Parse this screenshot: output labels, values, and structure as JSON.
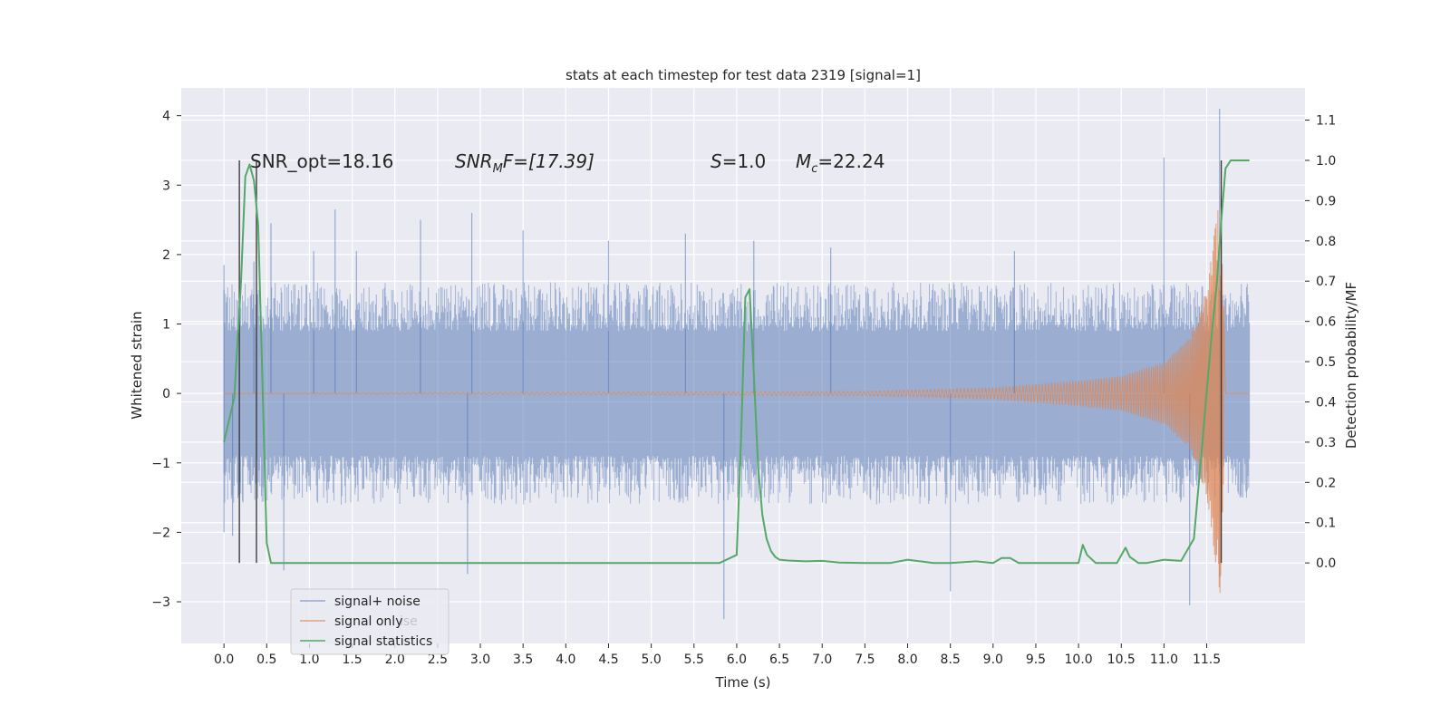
{
  "chart_data": {
    "type": "line",
    "title": "stats at each timestep for test data 2319 [signal=1]",
    "xlabel": "Time (s)",
    "ylabel": "Whitened strain",
    "y2label": "Detection probability/MF",
    "xlim": [
      -0.5,
      12.65
    ],
    "ylim": [
      -3.6,
      4.4
    ],
    "y2lim": [
      -0.2,
      1.18
    ],
    "x_ticks": [
      "0.0",
      "0.5",
      "1.0",
      "1.5",
      "2.0",
      "2.5",
      "3.0",
      "3.5",
      "4.0",
      "4.5",
      "5.0",
      "5.5",
      "6.0",
      "6.5",
      "7.0",
      "7.5",
      "8.0",
      "8.5",
      "9.0",
      "9.5",
      "10.0",
      "10.5",
      "11.0",
      "11.5"
    ],
    "y_ticks": [
      "4",
      "3",
      "2",
      "1",
      "0",
      "−1",
      "−2",
      "−3"
    ],
    "y2_ticks": [
      "1.1",
      "1.0",
      "0.9",
      "0.8",
      "0.7",
      "0.6",
      "0.5",
      "0.4",
      "0.3",
      "0.2",
      "0.1",
      "0.0"
    ],
    "grid": true,
    "legend_position": "lower-left",
    "annotations": [
      "SNR_opt=18.16",
      "SNR",
      "M",
      "F=[17.39]",
      "S",
      "=1.0",
      "M",
      "c",
      "=22.24"
    ],
    "series": [
      {
        "name": "signal+ noise",
        "axis": "left",
        "color": "#4c72b0",
        "description_x_range": [
          0.0,
          12.0
        ],
        "typical_band": [
          -1.6,
          1.6
        ],
        "spikes": [
          {
            "x": 0.0,
            "y": 1.85
          },
          {
            "x": 0.0,
            "y": -2.0
          },
          {
            "x": 0.1,
            "y": -2.05
          },
          {
            "x": 0.35,
            "y": 1.9
          },
          {
            "x": 0.55,
            "y": 2.45
          },
          {
            "x": 0.7,
            "y": -2.55
          },
          {
            "x": 1.05,
            "y": 2.05
          },
          {
            "x": 1.3,
            "y": 2.65
          },
          {
            "x": 1.55,
            "y": 2.05
          },
          {
            "x": 2.3,
            "y": 2.5
          },
          {
            "x": 2.9,
            "y": 2.6
          },
          {
            "x": 2.85,
            "y": -2.6
          },
          {
            "x": 3.5,
            "y": 2.35
          },
          {
            "x": 4.5,
            "y": 2.2
          },
          {
            "x": 5.4,
            "y": 2.3
          },
          {
            "x": 5.85,
            "y": -3.25
          },
          {
            "x": 6.2,
            "y": 2.2
          },
          {
            "x": 7.1,
            "y": 2.1
          },
          {
            "x": 8.5,
            "y": -2.85
          },
          {
            "x": 9.25,
            "y": 2.05
          },
          {
            "x": 11.0,
            "y": 3.4
          },
          {
            "x": 11.3,
            "y": -3.05
          },
          {
            "x": 11.65,
            "y": 4.1
          },
          {
            "x": 11.65,
            "y": -2.65
          }
        ]
      },
      {
        "name": "signal only",
        "axis": "left",
        "color": "#dd8452",
        "description": "chirp, near zero until ~7.5 s, amplitude growing toward merger at ~11.67 s",
        "envelope": [
          {
            "x": 0.0,
            "amp": 0.0
          },
          {
            "x": 7.5,
            "amp": 0.03
          },
          {
            "x": 9.0,
            "amp": 0.08
          },
          {
            "x": 10.0,
            "amp": 0.18
          },
          {
            "x": 10.5,
            "amp": 0.25
          },
          {
            "x": 11.0,
            "amp": 0.45
          },
          {
            "x": 11.3,
            "amp": 0.8
          },
          {
            "x": 11.5,
            "amp": 1.5
          },
          {
            "x": 11.6,
            "amp": 2.4
          },
          {
            "x": 11.67,
            "amp": 3.0
          },
          {
            "x": 11.72,
            "amp": 0.0
          },
          {
            "x": 12.0,
            "amp": 0.0
          }
        ]
      },
      {
        "name": "signal statistics",
        "axis": "right",
        "color": "#55a868",
        "x": [
          0.0,
          0.12,
          0.2,
          0.25,
          0.3,
          0.35,
          0.4,
          0.45,
          0.5,
          0.55,
          0.6,
          0.7,
          1.0,
          2.0,
          3.0,
          4.0,
          5.0,
          5.8,
          6.0,
          6.05,
          6.1,
          6.15,
          6.2,
          6.25,
          6.3,
          6.35,
          6.4,
          6.45,
          6.5,
          6.6,
          6.8,
          7.0,
          7.2,
          7.5,
          7.8,
          8.0,
          8.3,
          8.5,
          8.8,
          9.0,
          9.1,
          9.2,
          9.3,
          9.5,
          10.0,
          10.05,
          10.1,
          10.2,
          10.3,
          10.45,
          10.55,
          10.6,
          10.7,
          10.8,
          11.0,
          11.2,
          11.35,
          11.45,
          11.55,
          11.62,
          11.67,
          11.72,
          11.78,
          11.85,
          11.95,
          12.0
        ],
        "y": [
          0.3,
          0.41,
          0.7,
          0.96,
          0.99,
          0.95,
          0.84,
          0.45,
          0.05,
          0.0,
          0.0,
          0.0,
          0.0,
          0.0,
          0.0,
          0.0,
          0.0,
          0.0,
          0.02,
          0.3,
          0.66,
          0.68,
          0.47,
          0.24,
          0.12,
          0.06,
          0.03,
          0.015,
          0.008,
          0.006,
          0.004,
          0.005,
          0.001,
          0.0,
          0.0,
          0.008,
          0.0,
          0.0,
          0.004,
          0.0,
          0.012,
          0.012,
          0.0,
          0.0,
          0.0,
          0.045,
          0.02,
          0.0,
          0.0,
          0.0,
          0.038,
          0.015,
          0.0,
          0.0,
          0.008,
          0.005,
          0.06,
          0.3,
          0.55,
          0.7,
          0.85,
          0.98,
          1.0,
          1.0,
          1.0,
          1.0
        ]
      }
    ],
    "vertical_lines": [
      {
        "x": 0.18,
        "color": "#333333"
      },
      {
        "x": 0.38,
        "color": "#333333"
      },
      {
        "x": 11.67,
        "color": "#333333"
      }
    ]
  },
  "legend": {
    "items": [
      "signal+ noise",
      "signal only",
      "signal statistics"
    ],
    "overlap_text": "ise"
  },
  "colors": {
    "axes_bg": "#eaeaf2",
    "grid": "#ffffff",
    "noise": "#4c72b0",
    "signal": "#dd8452",
    "stats": "#55a868"
  }
}
